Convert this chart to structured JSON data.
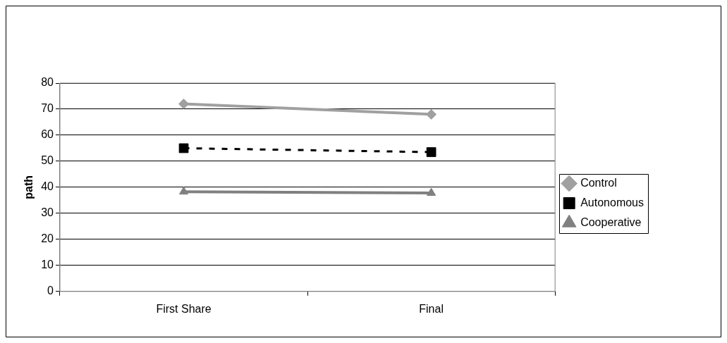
{
  "chart_data": {
    "type": "line",
    "ylabel": "path",
    "categories": [
      "First Share",
      "Final"
    ],
    "series": [
      {
        "name": "Control",
        "color": "#a0a0a0",
        "values": [
          72,
          68
        ],
        "marker": "diamond",
        "line_style": "solid"
      },
      {
        "name": "Autonomous",
        "color": "#000000",
        "values": [
          55,
          53.5
        ],
        "marker": "square",
        "line_style": "dashed"
      },
      {
        "name": "Cooperative",
        "color": "#808080",
        "values": [
          38.3,
          37.8
        ],
        "marker": "triangle",
        "line_style": "solid"
      }
    ],
    "ylim": [
      0,
      80
    ],
    "yticks": [
      0,
      10,
      20,
      30,
      40,
      50,
      60,
      70,
      80
    ],
    "grid": "y",
    "legend": "right"
  }
}
